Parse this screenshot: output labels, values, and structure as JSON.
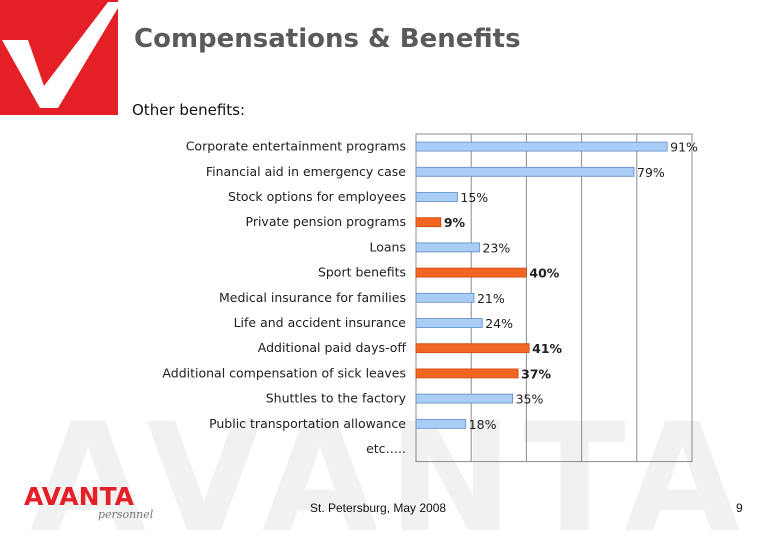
{
  "header": {
    "title": "Compensations & Benefits",
    "subtitle": "Other benefits:"
  },
  "colors": {
    "brand_red": "#e41f26",
    "bar_blue": "#a9cdf5",
    "bar_orange": "#f26522",
    "title_gray": "#5a5a5a"
  },
  "chart_data": {
    "type": "bar",
    "orientation": "horizontal",
    "title": "",
    "xlabel": "",
    "ylabel": "",
    "xlim": [
      0,
      100
    ],
    "grid": true,
    "categories": [
      "Corporate entertainment programs",
      "Financial aid in emergency case",
      "Stock options for employees",
      "Private pension programs",
      "Loans",
      "Sport benefits",
      "Medical insurance for families",
      "Life and accident insurance",
      "Additional paid days-off",
      "Additional compensation of sick leaves",
      "Shuttles to the factory",
      "Public transportation allowance",
      "etc….."
    ],
    "values": [
      91,
      79,
      15,
      9,
      23,
      40,
      21,
      24,
      41,
      37,
      35,
      18,
      null
    ],
    "value_labels": [
      "91%",
      "79%",
      "15%",
      "9%",
      "23%",
      "40%",
      "21%",
      "24%",
      "41%",
      "37%",
      "35%",
      "18%",
      ""
    ],
    "highlight": [
      false,
      false,
      false,
      true,
      false,
      true,
      false,
      false,
      true,
      true,
      false,
      false,
      false
    ]
  },
  "brand": {
    "logo_text": "AVANTA",
    "logo_subtext": "personnel",
    "watermark_text": "AVANTA"
  },
  "footer": {
    "location_date": "St. Petersburg, May 2008",
    "page_number": "9"
  }
}
